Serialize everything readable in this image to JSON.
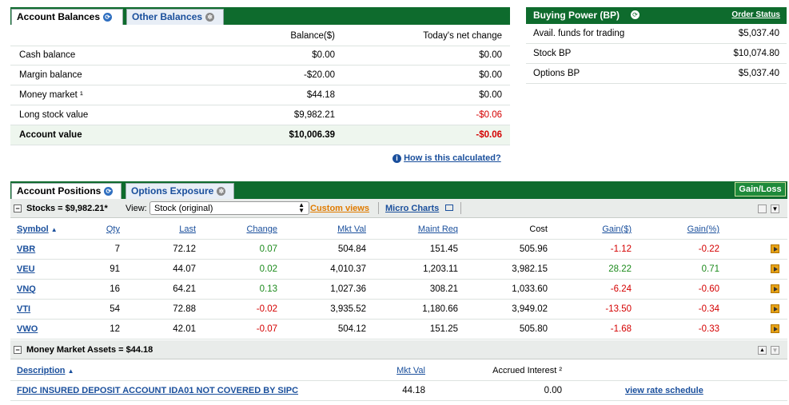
{
  "balances_tabs": [
    {
      "label": "Account Balances"
    },
    {
      "label": "Other Balances"
    }
  ],
  "balances": {
    "col_balance": "Balance($)",
    "col_change": "Today's net change",
    "rows": [
      {
        "label": "Cash balance",
        "balance": "$0.00",
        "change": "$0.00"
      },
      {
        "label": "Margin balance",
        "balance": "-$20.00",
        "change": "$0.00"
      },
      {
        "label": "Money market ¹",
        "balance": "$44.18",
        "change": "$0.00"
      },
      {
        "label": "Long stock value",
        "balance": "$9,982.21",
        "change": "-$0.06"
      }
    ],
    "total": {
      "label": "Account value",
      "balance": "$10,006.39",
      "change": "-$0.06"
    },
    "how_calculated": "How is this calculated?"
  },
  "buying_power": {
    "title": "Buying Power (BP)",
    "order_status": "Order Status",
    "rows": [
      {
        "label": "Avail. funds for trading",
        "value": "$5,037.40"
      },
      {
        "label": "Stock BP",
        "value": "$10,074.80"
      },
      {
        "label": "Options BP",
        "value": "$5,037.40"
      }
    ]
  },
  "positions_tabs": [
    {
      "label": "Account Positions"
    },
    {
      "label": "Options Exposure"
    }
  ],
  "gain_loss_button": "Gain/Loss",
  "stocks": {
    "header": "Stocks = $9,982.21*",
    "view_label": "View:",
    "view_value": "Stock (original)",
    "custom_views": "Custom views",
    "micro_charts": "Micro Charts",
    "columns": {
      "symbol": "Symbol",
      "qty": "Qty",
      "last": "Last",
      "change": "Change",
      "mkt_val": "Mkt Val",
      "maint_req": "Maint Req",
      "cost": "Cost",
      "gain_usd": "Gain($)",
      "gain_pct": "Gain(%)"
    },
    "rows": [
      {
        "symbol": "VBR",
        "qty": "7",
        "last": "72.12",
        "change": "0.07",
        "mkt_val": "504.84",
        "maint_req": "151.45",
        "cost": "505.96",
        "gain_usd": "-1.12",
        "gain_pct": "-0.22"
      },
      {
        "symbol": "VEU",
        "qty": "91",
        "last": "44.07",
        "change": "0.02",
        "mkt_val": "4,010.37",
        "maint_req": "1,203.11",
        "cost": "3,982.15",
        "gain_usd": "28.22",
        "gain_pct": "0.71"
      },
      {
        "symbol": "VNQ",
        "qty": "16",
        "last": "64.21",
        "change": "0.13",
        "mkt_val": "1,027.36",
        "maint_req": "308.21",
        "cost": "1,033.60",
        "gain_usd": "-6.24",
        "gain_pct": "-0.60"
      },
      {
        "symbol": "VTI",
        "qty": "54",
        "last": "72.88",
        "change": "-0.02",
        "mkt_val": "3,935.52",
        "maint_req": "1,180.66",
        "cost": "3,949.02",
        "gain_usd": "-13.50",
        "gain_pct": "-0.34"
      },
      {
        "symbol": "VWO",
        "qty": "12",
        "last": "42.01",
        "change": "-0.07",
        "mkt_val": "504.12",
        "maint_req": "151.25",
        "cost": "505.80",
        "gain_usd": "-1.68",
        "gain_pct": "-0.33"
      }
    ]
  },
  "money_market": {
    "header": "Money Market Assets = $44.18",
    "columns": {
      "description": "Description",
      "mkt_val": "Mkt Val",
      "accrued": "Accrued Interest ²"
    },
    "row": {
      "description": "FDIC INSURED DEPOSIT ACCOUNT IDA01 NOT COVERED BY SIPC",
      "mkt_val": "44.18",
      "accrued": "0.00",
      "link": "view rate schedule"
    }
  }
}
